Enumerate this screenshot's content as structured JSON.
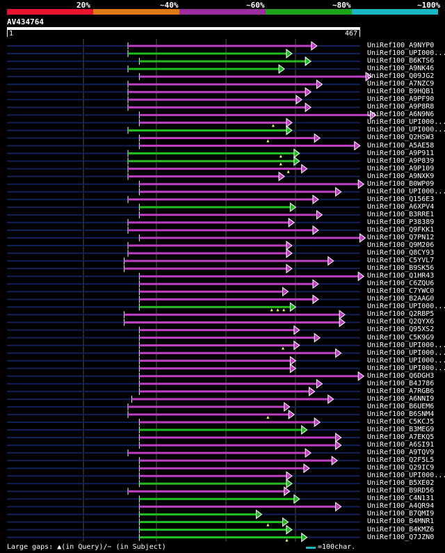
{
  "legend": {
    "labels": [
      "20%",
      "~40%",
      "~60%",
      "~80%",
      "~100%"
    ],
    "colors": [
      "#e8142f",
      "#e07a16",
      "#9b2d9e",
      "#1ea41a",
      "#19b6c4"
    ]
  },
  "query": {
    "id": "AV434764",
    "length": 467,
    "ruler_start": "1",
    "ruler_end": "467"
  },
  "footer": {
    "gaps_text": "Large gaps: ▲(in Query)/− (in Subject)",
    "scale_text": "=100char."
  },
  "hits": [
    {
      "id": "UniRef100_A9NYP0",
      "start": 160,
      "end": 408,
      "color": "magenta",
      "gaps": []
    },
    {
      "id": "UniRef100_UPI000...",
      "start": 160,
      "end": 375,
      "color": "green",
      "gaps": []
    },
    {
      "id": "UniRef100_B6KTS6",
      "start": 175,
      "end": 400,
      "color": "green",
      "gaps": []
    },
    {
      "id": "UniRef100_A9NK46",
      "start": 160,
      "end": 365,
      "color": "green",
      "gaps": []
    },
    {
      "id": "UniRef100_Q09JG2",
      "start": 175,
      "end": 480,
      "color": "magenta",
      "gaps": []
    },
    {
      "id": "UniRef100_A7NZC9",
      "start": 160,
      "end": 415,
      "color": "magenta",
      "gaps": []
    },
    {
      "id": "UniRef100_B9HQB1",
      "start": 160,
      "end": 400,
      "color": "magenta",
      "gaps": []
    },
    {
      "id": "UniRef100_A9PF90",
      "start": 160,
      "end": 388,
      "color": "magenta",
      "gaps": []
    },
    {
      "id": "UniRef100_A9P8R8",
      "start": 160,
      "end": 400,
      "color": "magenta",
      "gaps": []
    },
    {
      "id": "UniRef100_A6N9N6",
      "start": 175,
      "end": 486,
      "color": "magenta",
      "gaps": []
    },
    {
      "id": "UniRef100_UPI000...a",
      "start": 175,
      "end": 375,
      "color": "magenta",
      "gaps": [
        352
      ]
    },
    {
      "id": "UniRef100_UPI000...b",
      "start": 160,
      "end": 375,
      "color": "green",
      "gaps": []
    },
    {
      "id": "UniRef100_Q2HSW3",
      "start": 175,
      "end": 412,
      "color": "magenta",
      "gaps": [
        345
      ]
    },
    {
      "id": "UniRef100_A5AE58",
      "start": 175,
      "end": 465,
      "color": "magenta",
      "gaps": []
    },
    {
      "id": "UniRef100_A9P911",
      "start": 160,
      "end": 385,
      "color": "green",
      "gaps": [
        362
      ]
    },
    {
      "id": "UniRef100_A9P839",
      "start": 160,
      "end": 385,
      "color": "green",
      "gaps": [
        362
      ]
    },
    {
      "id": "UniRef100_A9P109",
      "start": 160,
      "end": 395,
      "color": "magenta",
      "gaps": [
        372
      ]
    },
    {
      "id": "UniRef100_A9NXK9",
      "start": 160,
      "end": 365,
      "color": "magenta",
      "gaps": []
    },
    {
      "id": "UniRef100_B0WP09",
      "start": 175,
      "end": 470,
      "color": "magenta",
      "gaps": []
    },
    {
      "id": "UniRef100_UPI000...c",
      "start": 175,
      "end": 440,
      "color": "magenta",
      "gaps": []
    },
    {
      "id": "UniRef100_Q156E3",
      "start": 160,
      "end": 410,
      "color": "magenta",
      "gaps": []
    },
    {
      "id": "UniRef100_A6XPV4",
      "start": 175,
      "end": 380,
      "color": "green",
      "gaps": []
    },
    {
      "id": "UniRef100_B3RRE1",
      "start": 175,
      "end": 415,
      "color": "magenta",
      "gaps": []
    },
    {
      "id": "UniRef100_P38389",
      "start": 160,
      "end": 378,
      "color": "magenta",
      "gaps": []
    },
    {
      "id": "UniRef100_Q9FKK1",
      "start": 160,
      "end": 410,
      "color": "magenta",
      "gaps": []
    },
    {
      "id": "UniRef100_Q7PN12",
      "start": 175,
      "end": 472,
      "color": "magenta",
      "gaps": []
    },
    {
      "id": "UniRef100_Q9M206",
      "start": 160,
      "end": 375,
      "color": "magenta",
      "gaps": []
    },
    {
      "id": "UniRef100_Q8CY93",
      "start": 160,
      "end": 375,
      "color": "magenta",
      "gaps": []
    },
    {
      "id": "UniRef100_C5YVL7",
      "start": 155,
      "end": 430,
      "color": "magenta",
      "gaps": []
    },
    {
      "id": "UniRef100_B9SK56",
      "start": 155,
      "end": 375,
      "color": "magenta",
      "gaps": []
    },
    {
      "id": "UniRef100_Q1HR43",
      "start": 175,
      "end": 470,
      "color": "magenta",
      "gaps": []
    },
    {
      "id": "UniRef100_C6ZQU6",
      "start": 175,
      "end": 410,
      "color": "magenta",
      "gaps": []
    },
    {
      "id": "UniRef100_C7YWC0",
      "start": 175,
      "end": 370,
      "color": "magenta",
      "gaps": []
    },
    {
      "id": "UniRef100_B2AAG0",
      "start": 175,
      "end": 410,
      "color": "magenta",
      "gaps": []
    },
    {
      "id": "UniRef100_UPI000...d",
      "start": 175,
      "end": 380,
      "color": "green",
      "gaps": [
        350,
        358,
        366
      ]
    },
    {
      "id": "UniRef100_Q2RBP5",
      "start": 155,
      "end": 445,
      "color": "magenta",
      "gaps": []
    },
    {
      "id": "UniRef100_Q2QYX6",
      "start": 155,
      "end": 445,
      "color": "magenta",
      "gaps": []
    },
    {
      "id": "UniRef100_Q95XS2",
      "start": 175,
      "end": 385,
      "color": "magenta",
      "gaps": []
    },
    {
      "id": "UniRef100_C5K9G9",
      "start": 175,
      "end": 412,
      "color": "magenta",
      "gaps": []
    },
    {
      "id": "UniRef100_UPI000...e",
      "start": 175,
      "end": 385,
      "color": "magenta",
      "gaps": [
        365
      ]
    },
    {
      "id": "UniRef100_UPI000...f",
      "start": 175,
      "end": 440,
      "color": "magenta",
      "gaps": []
    },
    {
      "id": "UniRef100_UPI000...g",
      "start": 175,
      "end": 380,
      "color": "magenta",
      "gaps": []
    },
    {
      "id": "UniRef100_UPI000...h",
      "start": 175,
      "end": 380,
      "color": "magenta",
      "gaps": []
    },
    {
      "id": "UniRef100_Q6DGH3",
      "start": 175,
      "end": 470,
      "color": "magenta",
      "gaps": []
    },
    {
      "id": "UniRef100_B4J786",
      "start": 175,
      "end": 415,
      "color": "magenta",
      "gaps": []
    },
    {
      "id": "UniRef100_A7RGB6",
      "start": 175,
      "end": 405,
      "color": "magenta",
      "gaps": []
    },
    {
      "id": "UniRef100_A6NNI9",
      "start": 165,
      "end": 430,
      "color": "magenta",
      "gaps": []
    },
    {
      "id": "UniRef100_B6UEM6",
      "start": 160,
      "end": 372,
      "color": "magenta",
      "gaps": []
    },
    {
      "id": "UniRef100_B6SNM4",
      "start": 160,
      "end": 378,
      "color": "magenta",
      "gaps": [
        345
      ]
    },
    {
      "id": "UniRef100_C5KCJ5",
      "start": 175,
      "end": 412,
      "color": "magenta",
      "gaps": []
    },
    {
      "id": "UniRef100_B3MEG9",
      "start": 175,
      "end": 395,
      "color": "green",
      "gaps": []
    },
    {
      "id": "UniRef100_A7EKQ5",
      "start": 175,
      "end": 440,
      "color": "magenta",
      "gaps": []
    },
    {
      "id": "UniRef100_A6SI91",
      "start": 175,
      "end": 440,
      "color": "magenta",
      "gaps": []
    },
    {
      "id": "UniRef100_A9TQV9",
      "start": 160,
      "end": 400,
      "color": "magenta",
      "gaps": []
    },
    {
      "id": "UniRef100_Q2F5L5",
      "start": 175,
      "end": 435,
      "color": "magenta",
      "gaps": []
    },
    {
      "id": "UniRef100_Q29IC9",
      "start": 175,
      "end": 398,
      "color": "magenta",
      "gaps": []
    },
    {
      "id": "UniRef100_UPI000...i",
      "start": 175,
      "end": 375,
      "color": "magenta",
      "gaps": []
    },
    {
      "id": "UniRef100_B5XE02",
      "start": 175,
      "end": 375,
      "color": "green",
      "gaps": []
    },
    {
      "id": "UniRef100_B9RD56",
      "start": 160,
      "end": 372,
      "color": "magenta",
      "gaps": []
    },
    {
      "id": "UniRef100_C4N131",
      "start": 175,
      "end": 385,
      "color": "green",
      "gaps": []
    },
    {
      "id": "UniRef100_A4QR94",
      "start": 175,
      "end": 440,
      "color": "magenta",
      "gaps": []
    },
    {
      "id": "UniRef100_B7QMI9",
      "start": 175,
      "end": 335,
      "color": "green",
      "gaps": []
    },
    {
      "id": "UniRef100_B4MNR1",
      "start": 175,
      "end": 370,
      "color": "green",
      "gaps": [
        345
      ]
    },
    {
      "id": "UniRef100_B4KMZ6",
      "start": 175,
      "end": 375,
      "color": "green",
      "gaps": []
    },
    {
      "id": "UniRef100_Q7JZN0",
      "start": 175,
      "end": 395,
      "color": "green",
      "gaps": [
        370
      ]
    }
  ]
}
